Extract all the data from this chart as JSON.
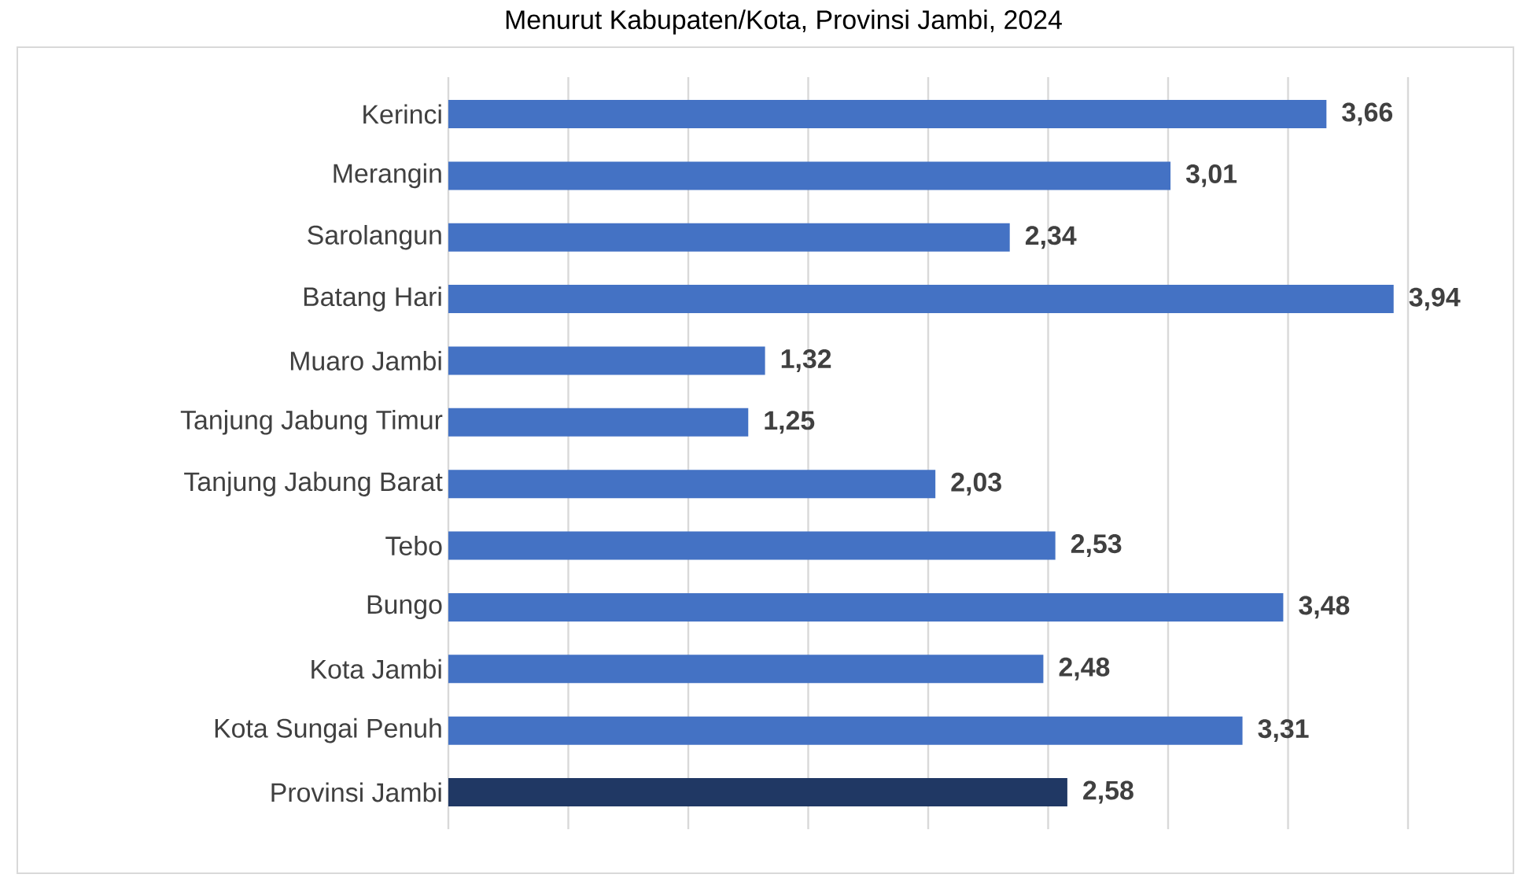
{
  "chart_data": {
    "type": "bar",
    "orientation": "horizontal",
    "title": "Menurut Kabupaten/Kota, Provinsi Jambi, 2024",
    "categories": [
      "Kerinci",
      "Merangin",
      "Sarolangun",
      "Batang Hari",
      "Muaro Jambi",
      "Tanjung Jabung Timur",
      "Tanjung Jabung Barat",
      "Tebo",
      "Bungo",
      "Kota Jambi",
      "Kota Sungai Penuh",
      "Provinsi Jambi"
    ],
    "values": [
      3.66,
      3.01,
      2.34,
      3.94,
      1.32,
      1.25,
      2.03,
      2.53,
      3.48,
      2.48,
      3.31,
      2.58
    ],
    "value_labels": [
      "3,66",
      "3,01",
      "2,34",
      "3,94",
      "1,32",
      "1,25",
      "2,03",
      "2,53",
      "3,48",
      "2,48",
      "3,31",
      "2,58"
    ],
    "colors": [
      "#4472c4",
      "#4472c4",
      "#4472c4",
      "#4472c4",
      "#4472c4",
      "#4472c4",
      "#4472c4",
      "#4472c4",
      "#4472c4",
      "#4472c4",
      "#4472c4",
      "#203864"
    ],
    "xlim": [
      0,
      4
    ],
    "xticks": [
      {
        "value": 0,
        "label": null
      },
      {
        "value": 0.5,
        "label": null
      },
      {
        "value": 1,
        "label": null
      },
      {
        "value": 1.5,
        "label": null
      },
      {
        "value": 2,
        "label": null
      },
      {
        "value": 2.5,
        "label": null
      },
      {
        "value": 3,
        "label": null
      },
      {
        "value": 3.5,
        "label": null
      },
      {
        "value": 4,
        "label": null
      }
    ],
    "grid": "x",
    "tick_labels": "y"
  }
}
